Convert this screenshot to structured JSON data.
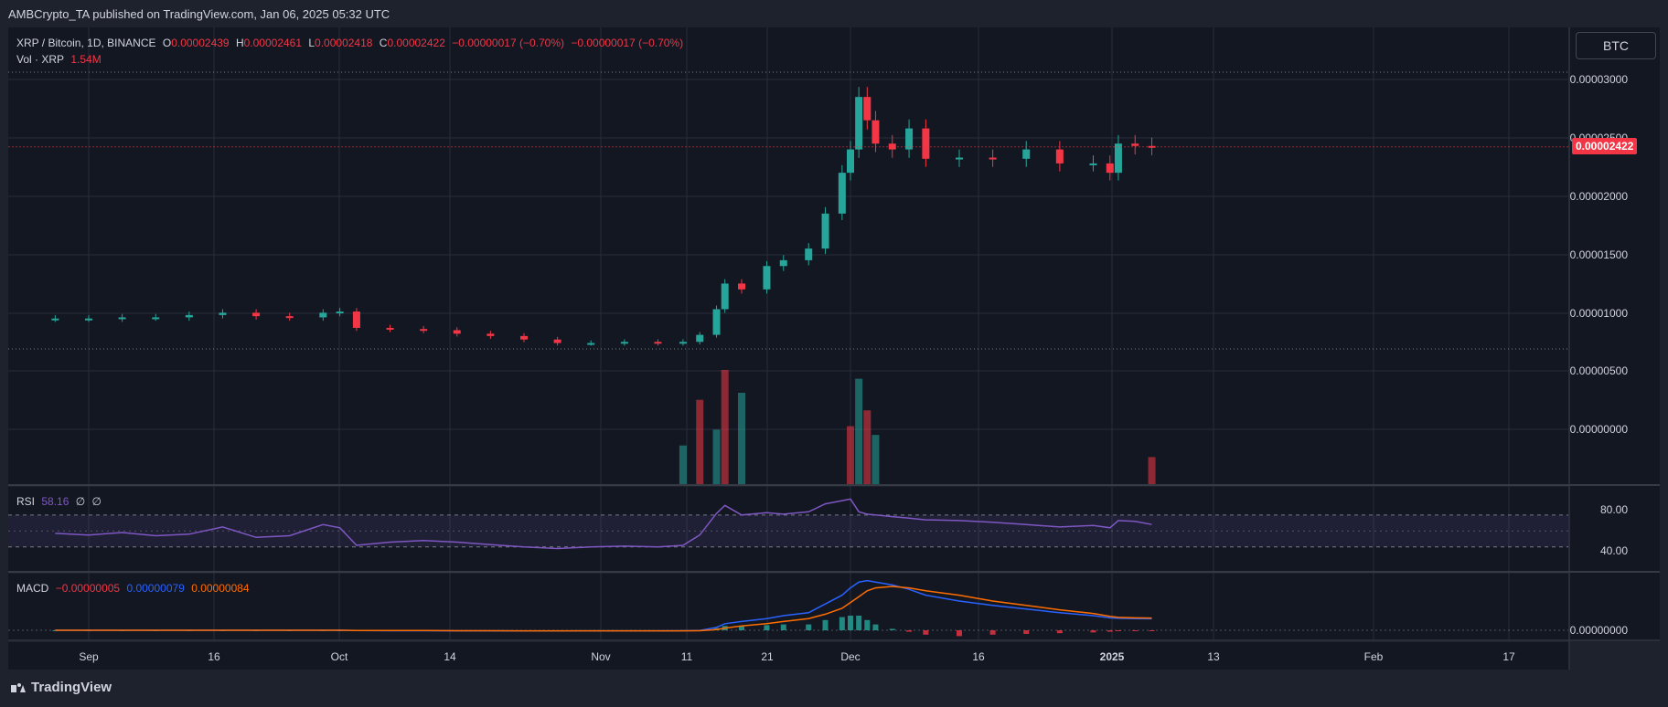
{
  "header": {
    "publisher": "AMBCrypto_TA published on TradingView.com, Jan 06, 2025 05:32 UTC"
  },
  "legend": {
    "symbol": "XRP / Bitcoin, 1D, BINANCE",
    "o_label": "O",
    "o": "0.00002439",
    "h_label": "H",
    "h": "0.00002461",
    "l_label": "L",
    "l": "0.00002418",
    "c_label": "C",
    "c": "0.00002422",
    "change": "−0.00000017 (−0.70%)",
    "change2": "−0.00000017 (−0.70%)",
    "vol_label": "Vol · XRP",
    "vol": "1.54M"
  },
  "currency_button": "BTC",
  "last_price": "0.00002422",
  "price_axis": [
    "0.00003000",
    "0.00002500",
    "0.00002000",
    "0.00001500",
    "0.00001000",
    "0.00000500",
    "0.00000000"
  ],
  "rsi": {
    "label": "RSI",
    "value": "58.16",
    "ext1": "∅",
    "ext2": "∅",
    "axis": [
      "80.00",
      "40.00"
    ]
  },
  "macd": {
    "label": "MACD",
    "hist": "−0.00000005",
    "macd": "0.00000079",
    "signal": "0.00000084",
    "axis": [
      "0.00000000"
    ]
  },
  "time_axis": [
    "Sep",
    "16",
    "Oct",
    "14",
    "Nov",
    "11",
    "21",
    "Dec",
    "16",
    "2025",
    "13",
    "Feb",
    "17"
  ],
  "footer": "TradingView",
  "colors": {
    "up": "#26a69a",
    "down": "#f23645",
    "rsi": "#7e57c2",
    "macd": "#2962ff",
    "signal": "#ff6d00"
  },
  "chart_data": [
    {
      "type": "candlestick",
      "title": "XRP / Bitcoin, 1D, BINANCE",
      "x": [
        "2024-08-28",
        "2024-09-01",
        "2024-09-05",
        "2024-09-09",
        "2024-09-13",
        "2024-09-17",
        "2024-09-21",
        "2024-09-25",
        "2024-09-29",
        "2024-10-01",
        "2024-10-03",
        "2024-10-07",
        "2024-10-11",
        "2024-10-15",
        "2024-10-19",
        "2024-10-23",
        "2024-10-27",
        "2024-10-31",
        "2024-11-04",
        "2024-11-08",
        "2024-11-11",
        "2024-11-13",
        "2024-11-15",
        "2024-11-16",
        "2024-11-18",
        "2024-11-21",
        "2024-11-23",
        "2024-11-26",
        "2024-11-28",
        "2024-11-30",
        "2024-12-01",
        "2024-12-02",
        "2024-12-03",
        "2024-12-04",
        "2024-12-06",
        "2024-12-08",
        "2024-12-10",
        "2024-12-14",
        "2024-12-18",
        "2024-12-22",
        "2024-12-26",
        "2024-12-30",
        "2025-01-01",
        "2025-01-02",
        "2025-01-04",
        "2025-01-06"
      ],
      "close": [
        9.5e-06,
        9.5e-06,
        9.6e-06,
        9.6e-06,
        9.8e-06,
        1e-05,
        9.7e-06,
        9.6e-06,
        1e-05,
        1.01e-05,
        8.7e-06,
        8.6e-06,
        8.5e-06,
        8.2e-06,
        8e-06,
        7.7e-06,
        7.4e-06,
        7.4e-06,
        7.5e-06,
        7.4e-06,
        7.5e-06,
        8.1e-06,
        1.03e-05,
        1.25e-05,
        1.2e-05,
        1.4e-05,
        1.45e-05,
        1.55e-05,
        1.85e-05,
        2.2e-05,
        2.4e-05,
        2.85e-05,
        2.65e-05,
        2.45e-05,
        2.4e-05,
        2.58e-05,
        2.32e-05,
        2.33e-05,
        2.32e-05,
        2.4e-05,
        2.28e-05,
        2.28e-05,
        2.2e-05,
        2.45e-05,
        2.43e-05,
        2.422e-05
      ],
      "ylim": [
        0,
        3.1e-06
      ]
    },
    {
      "type": "bar",
      "title": "Vol · XRP",
      "x": [
        "2024-11-11",
        "2024-11-13",
        "2024-11-15",
        "2024-11-16",
        "2024-11-18",
        "2024-12-01",
        "2024-12-02",
        "2024-12-03",
        "2024-12-04",
        "2025-01-06"
      ],
      "values": [
        2.2,
        4.8,
        3.1,
        6.5,
        5.2,
        3.3,
        6.0,
        4.2,
        2.8,
        1.54
      ],
      "unit": "M"
    },
    {
      "type": "line",
      "title": "RSI",
      "series": [
        {
          "name": "RSI",
          "values": [
            47,
            45,
            48,
            44,
            46,
            55,
            42,
            44,
            58,
            54,
            32,
            36,
            38,
            36,
            33,
            30,
            28,
            30,
            31,
            30,
            32,
            45,
            72,
            82,
            70,
            73,
            71,
            74,
            84,
            88,
            90,
            74,
            71,
            70,
            68,
            66,
            64,
            63,
            61,
            58,
            55,
            57,
            54,
            63,
            62,
            58.16
          ]
        }
      ],
      "ylim": [
        0,
        100
      ]
    },
    {
      "type": "line",
      "title": "MACD",
      "series": [
        {
          "name": "MACD",
          "values": [
            0,
            0,
            0,
            0,
            0,
            0,
            0,
            0,
            0,
            0,
            -2e-08,
            -3e-08,
            -3e-08,
            -4e-08,
            -4e-08,
            -5e-08,
            -5e-08,
            -4e-08,
            -4e-08,
            -4e-08,
            -3e-08,
            -1e-08,
            2e-07,
            4.5e-07,
            6e-07,
            8e-07,
            1e-06,
            1.2e-06,
            1.8e-06,
            2.4e-06,
            2.9e-06,
            3.3e-06,
            3.4e-06,
            3.3e-06,
            3.1e-06,
            2.8e-06,
            2.4e-06,
            2e-06,
            1.7e-06,
            1.45e-06,
            1.2e-06,
            1e-06,
            8.5e-07,
            8.2e-07,
            8e-07,
            7.9e-07
          ]
        },
        {
          "name": "Signal",
          "values": [
            0,
            0,
            0,
            0,
            0,
            0,
            0,
            0,
            0,
            0,
            -1e-08,
            -2e-08,
            -2e-08,
            -3e-08,
            -3e-08,
            -4e-08,
            -4e-08,
            -4e-08,
            -4e-08,
            -4e-08,
            -4e-08,
            -3e-08,
            5e-08,
            1.5e-07,
            3e-07,
            4.5e-07,
            6e-07,
            8e-07,
            1.1e-06,
            1.5e-06,
            1.9e-06,
            2.3e-06,
            2.7e-06,
            2.9e-06,
            3e-06,
            2.9e-06,
            2.7e-06,
            2.4e-06,
            2e-06,
            1.7e-06,
            1.4e-06,
            1.15e-06,
            9.5e-07,
            8.8e-07,
            8.5e-07,
            8.4e-07
          ]
        }
      ]
    }
  ]
}
